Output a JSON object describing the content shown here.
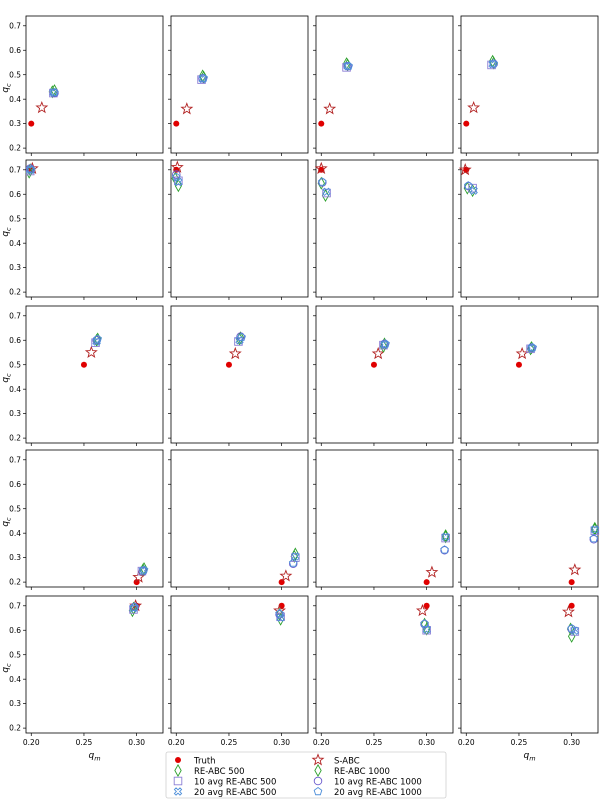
{
  "chart_data": {
    "type": "scatter",
    "layout": {
      "rows": 5,
      "cols": 4
    },
    "xlabel": "q_m",
    "ylabel": "q_c",
    "xlim": [
      0.195,
      0.325
    ],
    "ylim": [
      0.18,
      0.74
    ],
    "xticks": [
      0.2,
      0.25,
      0.3
    ],
    "xtick_labels": [
      "0.20",
      "0.25",
      "0.30"
    ],
    "yticks": [
      0.2,
      0.3,
      0.4,
      0.5,
      0.6,
      0.7
    ],
    "ytick_labels": [
      "0.2",
      "0.3",
      "0.4",
      "0.5",
      "0.6",
      "0.7"
    ],
    "grid": false,
    "legend": {
      "placement": "bottom-center",
      "columns": 2,
      "entries": [
        {
          "key": "truth",
          "label": "Truth",
          "marker": "dot",
          "color": "#e00000"
        },
        {
          "key": "sabc",
          "label": "S-ABC",
          "marker": "star",
          "color": "#b22222"
        },
        {
          "key": "re500",
          "label": "RE-ABC 500",
          "marker": "diamond",
          "color": "#2ca02c"
        },
        {
          "key": "re1000",
          "label": "RE-ABC 1000",
          "marker": "diamond",
          "color": "#2ca02c"
        },
        {
          "key": "avg10_500",
          "label": "10 avg RE-ABC 500",
          "marker": "square",
          "color": "#8c7fd6"
        },
        {
          "key": "avg10_1000",
          "label": "10 avg RE-ABC 1000",
          "marker": "circle",
          "color": "#6a5acd"
        },
        {
          "key": "avg20_500",
          "label": "20 avg RE-ABC 500",
          "marker": "x",
          "color": "#4f8fd9"
        },
        {
          "key": "avg20_1000",
          "label": "20 avg RE-ABC 1000",
          "marker": "pentagon",
          "color": "#4f8fd9"
        }
      ]
    },
    "panels": [
      {
        "truth": [
          0.2,
          0.3
        ],
        "sabc": [
          0.21,
          0.365
        ],
        "re500": [
          0.22,
          0.43
        ],
        "re1000": [
          0.222,
          0.435
        ],
        "avg10_500": [
          0.221,
          0.425
        ],
        "avg10_1000": [
          0.222,
          0.425
        ],
        "avg20_500": [
          0.221,
          0.428
        ],
        "avg20_1000": [
          0.222,
          0.427
        ]
      },
      {
        "truth": [
          0.2,
          0.3
        ],
        "sabc": [
          0.21,
          0.36
        ],
        "re500": [
          0.225,
          0.495
        ],
        "re1000": [
          0.226,
          0.49
        ],
        "avg10_500": [
          0.224,
          0.48
        ],
        "avg10_1000": [
          0.225,
          0.485
        ],
        "avg20_500": [
          0.225,
          0.483
        ],
        "avg20_1000": [
          0.226,
          0.486
        ]
      },
      {
        "truth": [
          0.2,
          0.3
        ],
        "sabc": [
          0.208,
          0.36
        ],
        "re500": [
          0.224,
          0.545
        ],
        "re1000": [
          0.225,
          0.54
        ],
        "avg10_500": [
          0.224,
          0.53
        ],
        "avg10_1000": [
          0.225,
          0.535
        ],
        "avg20_500": [
          0.225,
          0.535
        ],
        "avg20_1000": [
          0.226,
          0.535
        ]
      },
      {
        "truth": [
          0.2,
          0.3
        ],
        "sabc": [
          0.207,
          0.365
        ],
        "re500": [
          0.225,
          0.555
        ],
        "re1000": [
          0.226,
          0.548
        ],
        "avg10_500": [
          0.224,
          0.54
        ],
        "avg10_1000": [
          0.226,
          0.545
        ],
        "avg20_500": [
          0.225,
          0.543
        ],
        "avg20_1000": [
          0.226,
          0.545
        ]
      },
      {
        "truth": [
          0.2,
          0.7
        ],
        "sabc": [
          0.201,
          0.705
        ],
        "re500": [
          0.198,
          0.69
        ],
        "re1000": [
          0.199,
          0.7
        ],
        "avg10_500": [
          0.199,
          0.695
        ],
        "avg10_1000": [
          0.199,
          0.705
        ],
        "avg20_500": [
          0.199,
          0.7
        ],
        "avg20_1000": [
          0.2,
          0.7
        ]
      },
      {
        "truth": [
          0.2,
          0.7
        ],
        "sabc": [
          0.201,
          0.71
        ],
        "re500": [
          0.202,
          0.635
        ],
        "re1000": [
          0.199,
          0.665
        ],
        "avg10_500": [
          0.202,
          0.655
        ],
        "avg10_1000": [
          0.2,
          0.68
        ],
        "avg20_500": [
          0.202,
          0.65
        ],
        "avg20_1000": [
          0.2,
          0.67
        ]
      },
      {
        "truth": [
          0.2,
          0.7
        ],
        "sabc": [
          0.2,
          0.705
        ],
        "re500": [
          0.204,
          0.595
        ],
        "re1000": [
          0.2,
          0.645
        ],
        "avg10_500": [
          0.205,
          0.605
        ],
        "avg10_1000": [
          0.201,
          0.648
        ],
        "avg20_500": [
          0.205,
          0.61
        ],
        "avg20_1000": [
          0.201,
          0.65
        ]
      },
      {
        "truth": [
          0.2,
          0.7
        ],
        "sabc": [
          0.199,
          0.7
        ],
        "re500": [
          0.206,
          0.615
        ],
        "re1000": [
          0.201,
          0.625
        ],
        "avg10_500": [
          0.206,
          0.625
        ],
        "avg10_1000": [
          0.202,
          0.633
        ],
        "avg20_500": [
          0.207,
          0.615
        ],
        "avg20_1000": [
          0.202,
          0.635
        ]
      },
      {
        "truth": [
          0.25,
          0.5
        ],
        "sabc": [
          0.257,
          0.55
        ],
        "re500": [
          0.262,
          0.6
        ],
        "re1000": [
          0.263,
          0.605
        ],
        "avg10_500": [
          0.261,
          0.59
        ],
        "avg10_1000": [
          0.262,
          0.6
        ],
        "avg20_500": [
          0.262,
          0.595
        ],
        "avg20_1000": [
          0.263,
          0.605
        ]
      },
      {
        "truth": [
          0.25,
          0.5
        ],
        "sabc": [
          0.256,
          0.545
        ],
        "re500": [
          0.26,
          0.605
        ],
        "re1000": [
          0.261,
          0.61
        ],
        "avg10_500": [
          0.259,
          0.595
        ],
        "avg10_1000": [
          0.261,
          0.615
        ],
        "avg20_500": [
          0.26,
          0.6
        ],
        "avg20_1000": [
          0.262,
          0.612
        ]
      },
      {
        "truth": [
          0.25,
          0.5
        ],
        "sabc": [
          0.254,
          0.545
        ],
        "re500": [
          0.259,
          0.575
        ],
        "re1000": [
          0.26,
          0.585
        ],
        "avg10_500": [
          0.259,
          0.58
        ],
        "avg10_1000": [
          0.26,
          0.585
        ],
        "avg20_500": [
          0.26,
          0.582
        ],
        "avg20_1000": [
          0.261,
          0.585
        ]
      },
      {
        "truth": [
          0.25,
          0.5
        ],
        "sabc": [
          0.253,
          0.545
        ],
        "re500": [
          0.261,
          0.565
        ],
        "re1000": [
          0.262,
          0.57
        ],
        "avg10_500": [
          0.261,
          0.565
        ],
        "avg10_1000": [
          0.262,
          0.57
        ],
        "avg20_500": [
          0.262,
          0.568
        ],
        "avg20_1000": [
          0.263,
          0.57
        ]
      },
      {
        "truth": [
          0.3,
          0.2
        ],
        "sabc": [
          0.302,
          0.22
        ],
        "re500": [
          0.307,
          0.255
        ],
        "re1000": [
          0.306,
          0.25
        ],
        "avg10_500": [
          0.305,
          0.245
        ],
        "avg10_1000": [
          0.306,
          0.245
        ],
        "avg20_500": [
          0.306,
          0.247
        ],
        "avg20_1000": [
          0.307,
          0.25
        ]
      },
      {
        "truth": [
          0.3,
          0.2
        ],
        "sabc": [
          0.304,
          0.225
        ],
        "re500": [
          0.313,
          0.315
        ],
        "re1000": [
          0.312,
          0.305
        ],
        "avg10_500": [
          0.313,
          0.3
        ],
        "avg10_1000": [
          0.311,
          0.275
        ],
        "avg20_500": [
          0.313,
          0.305
        ],
        "avg20_1000": [
          0.311,
          0.278
        ]
      },
      {
        "truth": [
          0.3,
          0.2
        ],
        "sabc": [
          0.305,
          0.24
        ],
        "re500": [
          0.318,
          0.39
        ],
        "re1000": [
          0.318,
          0.385
        ],
        "avg10_500": [
          0.318,
          0.38
        ],
        "avg10_1000": [
          0.317,
          0.33
        ],
        "avg20_500": [
          0.318,
          0.385
        ],
        "avg20_1000": [
          0.317,
          0.332
        ]
      },
      {
        "truth": [
          0.3,
          0.2
        ],
        "sabc": [
          0.303,
          0.25
        ],
        "re500": [
          0.322,
          0.42
        ],
        "re1000": [
          0.322,
          0.415
        ],
        "avg10_500": [
          0.322,
          0.41
        ],
        "avg10_1000": [
          0.321,
          0.375
        ],
        "avg20_500": [
          0.322,
          0.415
        ],
        "avg20_1000": [
          0.321,
          0.378
        ]
      },
      {
        "truth": [
          0.3,
          0.7
        ],
        "sabc": [
          0.299,
          0.7
        ],
        "re500": [
          0.296,
          0.68
        ],
        "re1000": [
          0.297,
          0.69
        ],
        "avg10_500": [
          0.297,
          0.685
        ],
        "avg10_1000": [
          0.298,
          0.695
        ],
        "avg20_500": [
          0.297,
          0.69
        ],
        "avg20_1000": [
          0.298,
          0.695
        ]
      },
      {
        "truth": [
          0.3,
          0.7
        ],
        "sabc": [
          0.298,
          0.68
        ],
        "re500": [
          0.299,
          0.645
        ],
        "re1000": [
          0.298,
          0.665
        ],
        "avg10_500": [
          0.299,
          0.655
        ],
        "avg10_1000": [
          0.298,
          0.665
        ],
        "avg20_500": [
          0.299,
          0.652
        ],
        "avg20_1000": [
          0.298,
          0.668
        ]
      },
      {
        "truth": [
          0.3,
          0.7
        ],
        "sabc": [
          0.296,
          0.68
        ],
        "re500": [
          0.3,
          0.605
        ],
        "re1000": [
          0.298,
          0.625
        ],
        "avg10_500": [
          0.3,
          0.6
        ],
        "avg10_1000": [
          0.298,
          0.625
        ],
        "avg20_500": [
          0.3,
          0.603
        ],
        "avg20_1000": [
          0.298,
          0.627
        ]
      },
      {
        "truth": [
          0.3,
          0.7
        ],
        "sabc": [
          0.297,
          0.675
        ],
        "re500": [
          0.3,
          0.575
        ],
        "re1000": [
          0.299,
          0.605
        ],
        "avg10_500": [
          0.303,
          0.595
        ],
        "avg10_1000": [
          0.3,
          0.605
        ],
        "avg20_500": [
          0.303,
          0.598
        ],
        "avg20_1000": [
          0.3,
          0.607
        ]
      }
    ]
  }
}
